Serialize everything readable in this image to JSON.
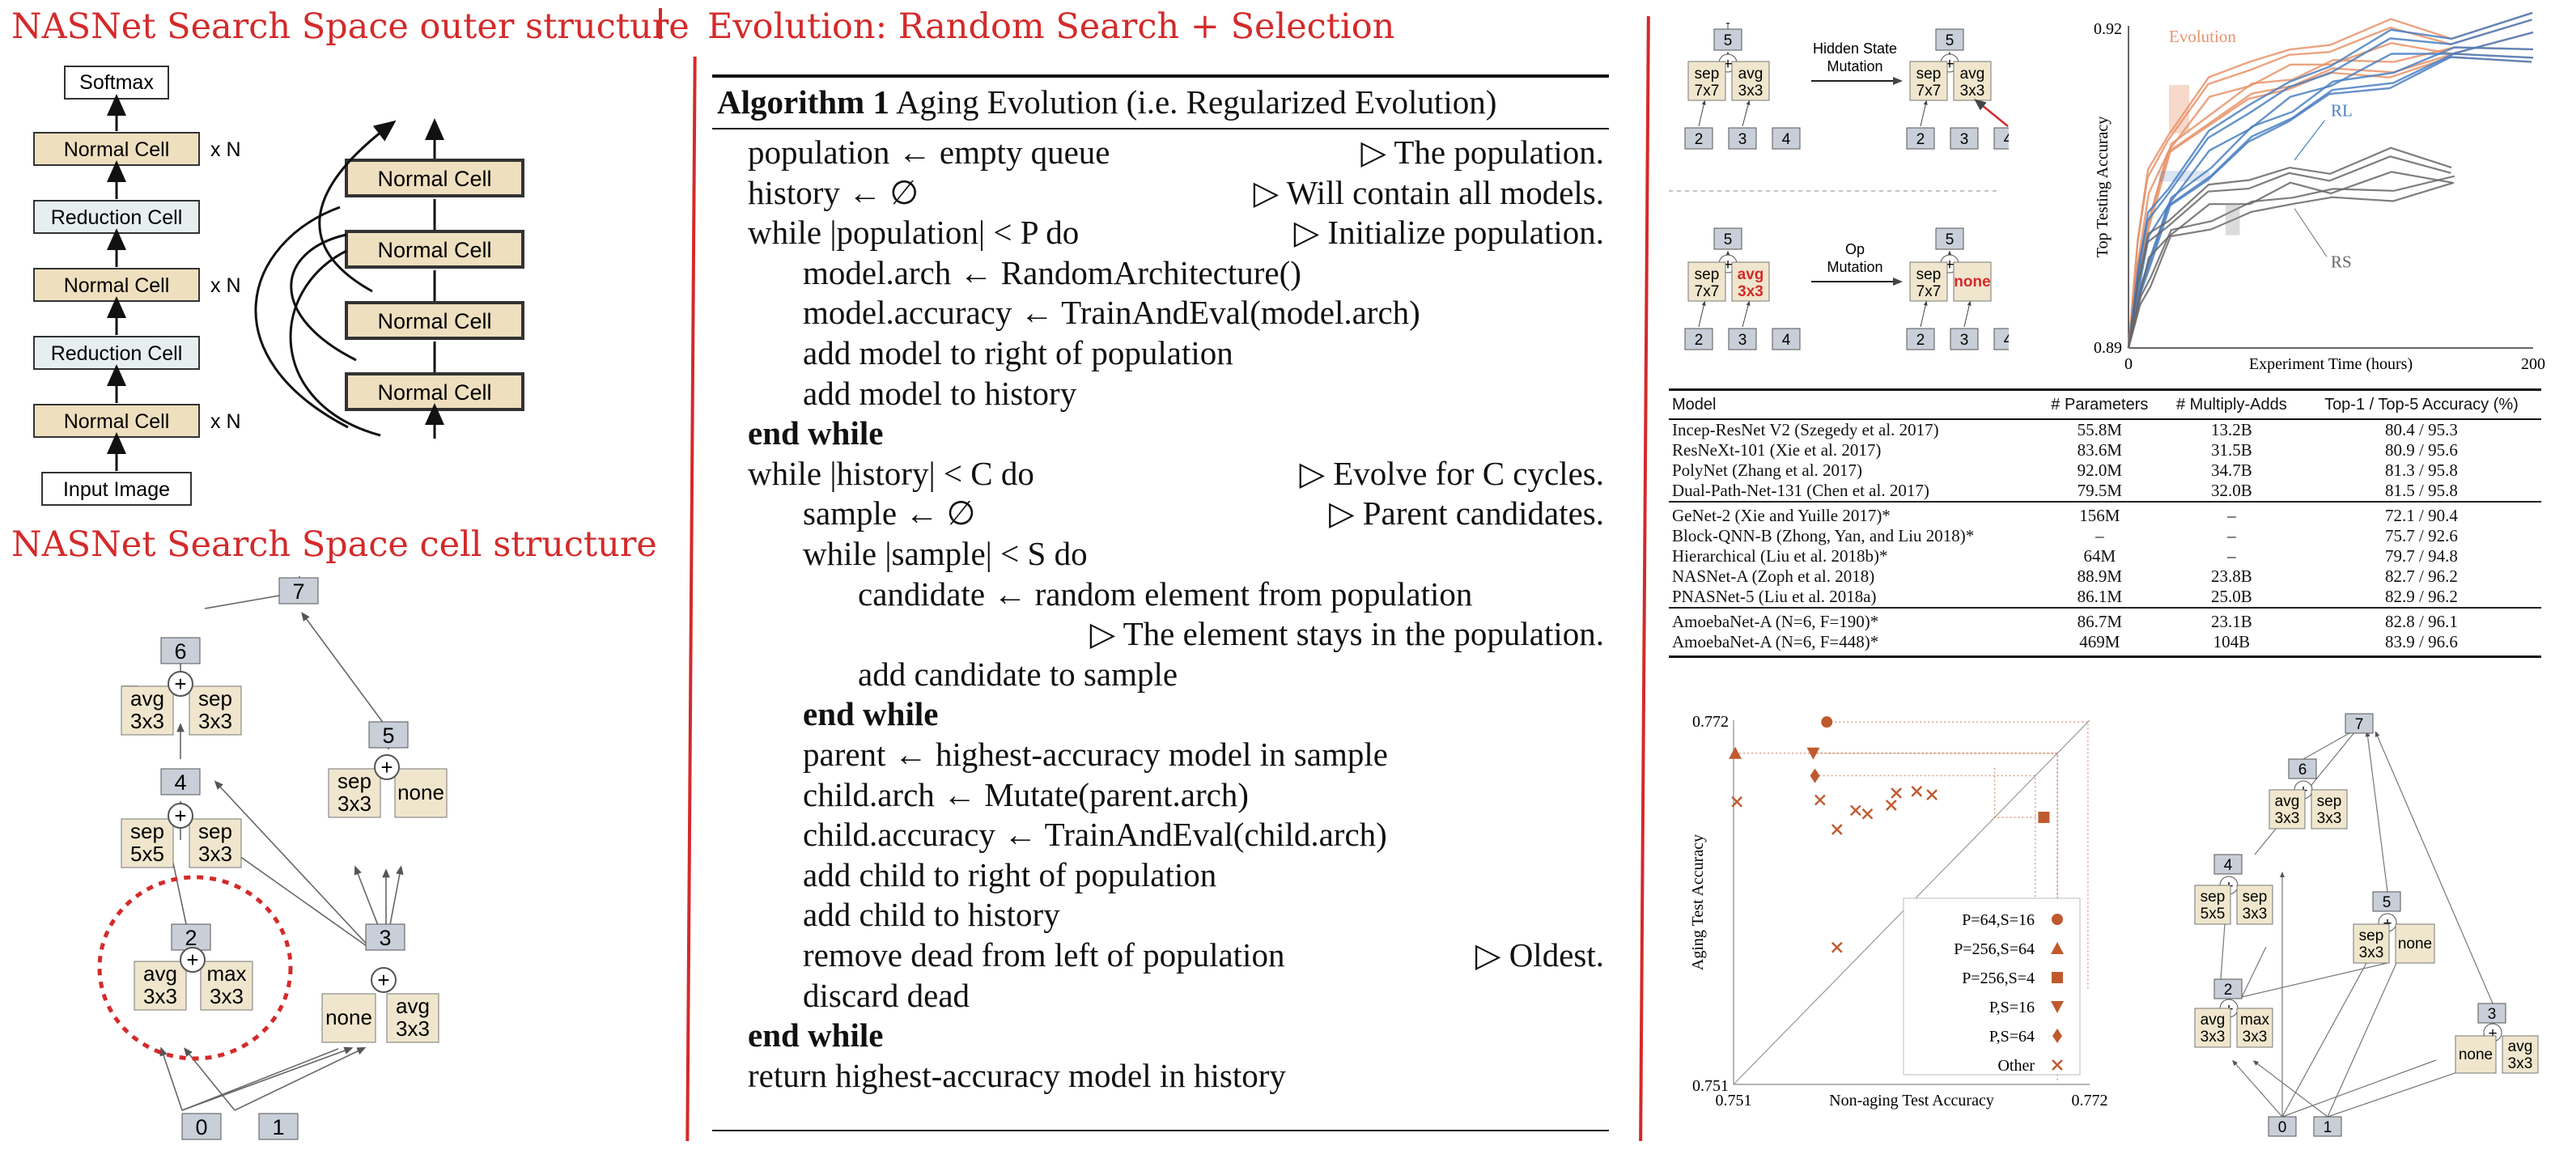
{
  "titles": {
    "outer": "NASNet Search Space outer structure",
    "cell": "NASNet Search Space cell structure",
    "evolution": "Evolution: Random Search + Selection"
  },
  "outer_structure": {
    "softmax": "Softmax",
    "normal_cell": "Normal Cell",
    "reduction_cell": "Reduction Cell",
    "input_image": "Input Image",
    "repeat": "x N"
  },
  "cell_structure": {
    "nodes": [
      "0",
      "1",
      "2",
      "3",
      "4",
      "5",
      "6",
      "7"
    ],
    "ops": {
      "avg3": "avg\n3x3",
      "sep3": "sep\n3x3",
      "sep5": "sep\n5x5",
      "max3": "max\n3x3",
      "none": "none"
    }
  },
  "algorithm": {
    "label": "Algorithm 1",
    "title": "Aging Evolution (i.e. Regularized Evolution)",
    "lines": [
      {
        "code": "population ← empty queue",
        "comment": "▷ The population."
      },
      {
        "code": "history ← ∅",
        "comment": "▷ Will contain all models."
      },
      {
        "code": "while |population| < P do",
        "comment": "▷ Initialize population."
      },
      {
        "code": "model.arch ← RandomArchitecture()",
        "comment": ""
      },
      {
        "code": "model.accuracy ← TrainAndEval(model.arch)",
        "comment": ""
      },
      {
        "code": "add model to right of population",
        "comment": ""
      },
      {
        "code": "add model to history",
        "comment": ""
      },
      {
        "code": "end while",
        "comment": ""
      },
      {
        "code": "while |history| < C do",
        "comment": "▷ Evolve for C cycles."
      },
      {
        "code": "sample ← ∅",
        "comment": "▷ Parent candidates."
      },
      {
        "code": "while |sample| < S do",
        "comment": ""
      },
      {
        "code": "candidate ← random element from population",
        "comment": ""
      },
      {
        "code": "",
        "comment": "▷ The element stays in the population."
      },
      {
        "code": "add candidate to sample",
        "comment": ""
      },
      {
        "code": "end while",
        "comment": ""
      },
      {
        "code": "parent ← highest-accuracy model in sample",
        "comment": ""
      },
      {
        "code": "child.arch ← Mutate(parent.arch)",
        "comment": ""
      },
      {
        "code": "child.accuracy ← TrainAndEval(child.arch)",
        "comment": ""
      },
      {
        "code": "add child to right of population",
        "comment": ""
      },
      {
        "code": "add child to history",
        "comment": ""
      },
      {
        "code": "remove dead from left of population",
        "comment": "▷ Oldest."
      },
      {
        "code": "discard dead",
        "comment": ""
      },
      {
        "code": "end while",
        "comment": ""
      },
      {
        "code": "return highest-accuracy model in history",
        "comment": ""
      }
    ]
  },
  "mutations": {
    "hidden_state": "Hidden State\nMutation",
    "op": "Op\nMutation",
    "sep7": "sep\n7x7",
    "avg3": "avg\n3x3",
    "none": "none",
    "nodes": [
      "2",
      "3",
      "4",
      "5"
    ]
  },
  "table": {
    "headers": [
      "Model",
      "# Parameters",
      "# Multiply-Adds",
      "Top-1 / Top-5 Accuracy (%)"
    ],
    "groups": [
      [
        [
          "Incep-ResNet V2 (Szegedy et al. 2017)",
          "55.8M",
          "13.2B",
          "80.4 / 95.3"
        ],
        [
          "ResNeXt-101 (Xie et al. 2017)",
          "83.6M",
          "31.5B",
          "80.9 / 95.6"
        ],
        [
          "PolyNet (Zhang et al. 2017)",
          "92.0M",
          "34.7B",
          "81.3 / 95.8"
        ],
        [
          "Dual-Path-Net-131 (Chen et al. 2017)",
          "79.5M",
          "32.0B",
          "81.5 / 95.8"
        ]
      ],
      [
        [
          "GeNet-2 (Xie and Yuille 2017)*",
          "156M",
          "–",
          "72.1 / 90.4"
        ],
        [
          "Block-QNN-B (Zhong, Yan, and Liu 2018)*",
          "–",
          "–",
          "75.7 / 92.6"
        ],
        [
          "Hierarchical (Liu et al. 2018b)*",
          "64M",
          "–",
          "79.7 / 94.8"
        ],
        [
          "NASNet-A (Zoph et al. 2018)",
          "88.9M",
          "23.8B",
          "82.7 / 96.2"
        ],
        [
          "PNASNet-5 (Liu et al. 2018a)",
          "86.1M",
          "25.0B",
          "82.9 / 96.2"
        ]
      ],
      [
        [
          "AmoebaNet-A (N=6, F=190)*",
          "86.7M",
          "23.1B",
          "82.8 / 96.1"
        ],
        [
          "AmoebaNet-A (N=6, F=448)*",
          "469M",
          "104B",
          "83.9 / 96.6"
        ]
      ]
    ]
  },
  "chart_data": [
    {
      "type": "line",
      "title": "",
      "xlabel": "Experiment Time (hours)",
      "ylabel": "Top Testing Accuracy",
      "xlim": [
        0,
        200
      ],
      "ylim": [
        0.89,
        0.92
      ],
      "x_ticks": [
        "0",
        "200"
      ],
      "y_ticks": [
        "0.89",
        "0.92"
      ],
      "colors": {
        "Evolution": "#e8936a",
        "RL": "#4a7fc1",
        "RS": "#666666"
      },
      "series": [
        {
          "name": "Evolution",
          "x": [
            0,
            5,
            10,
            20,
            40,
            60,
            80,
            100,
            130,
            160,
            200
          ],
          "values": [
            0.89,
            0.899,
            0.904,
            0.909,
            0.913,
            0.915,
            0.916,
            0.917,
            0.918,
            0.918,
            0.919
          ]
        },
        {
          "name": "RL",
          "x": [
            0,
            5,
            10,
            20,
            40,
            60,
            80,
            100,
            130,
            160,
            200
          ],
          "values": [
            0.89,
            0.896,
            0.9,
            0.904,
            0.908,
            0.911,
            0.913,
            0.915,
            0.917,
            0.918,
            0.919
          ]
        },
        {
          "name": "RS",
          "x": [
            0,
            5,
            10,
            20,
            40,
            60,
            80,
            100,
            130,
            160
          ],
          "values": [
            0.89,
            0.895,
            0.898,
            0.901,
            0.903,
            0.904,
            0.905,
            0.905,
            0.906,
            0.906
          ]
        }
      ]
    },
    {
      "type": "scatter",
      "title": "",
      "xlabel": "Non-aging Test Accuracy",
      "ylabel": "Aging Test Accuracy",
      "xlim": [
        0.751,
        0.772
      ],
      "ylim": [
        0.751,
        0.772
      ],
      "x_ticks": [
        "0.751",
        "0.772"
      ],
      "y_ticks": [
        "0.751",
        "0.772"
      ],
      "color": "#c05a2e",
      "series": [
        {
          "name": "P=64,S=16",
          "marker": "circle",
          "points": [
            [
              0.7565,
              0.7719
            ]
          ]
        },
        {
          "name": "P=256,S=64",
          "marker": "triangle-up",
          "points": [
            [
              0.7511,
              0.7701
            ]
          ]
        },
        {
          "name": "P=256,S=4",
          "marker": "square",
          "points": [
            [
              0.7693,
              0.7664
            ]
          ]
        },
        {
          "name": "P,S=16",
          "marker": "triangle-down",
          "points": [
            [
              0.7557,
              0.7701
            ]
          ]
        },
        {
          "name": "P,S=64",
          "marker": "diamond",
          "points": [
            [
              0.7558,
              0.7688
            ]
          ]
        },
        {
          "name": "Other",
          "marker": "x",
          "points": [
            [
              0.7512,
              0.7673
            ],
            [
              0.7561,
              0.7674
            ],
            [
              0.7582,
              0.7668
            ],
            [
              0.7589,
              0.7666
            ],
            [
              0.7603,
              0.7671
            ],
            [
              0.7606,
              0.7678
            ],
            [
              0.7618,
              0.7679
            ],
            [
              0.7627,
              0.7677
            ],
            [
              0.7571,
              0.7657
            ],
            [
              0.7571,
              0.7589
            ]
          ]
        }
      ],
      "legend": "bottom-right"
    }
  ]
}
